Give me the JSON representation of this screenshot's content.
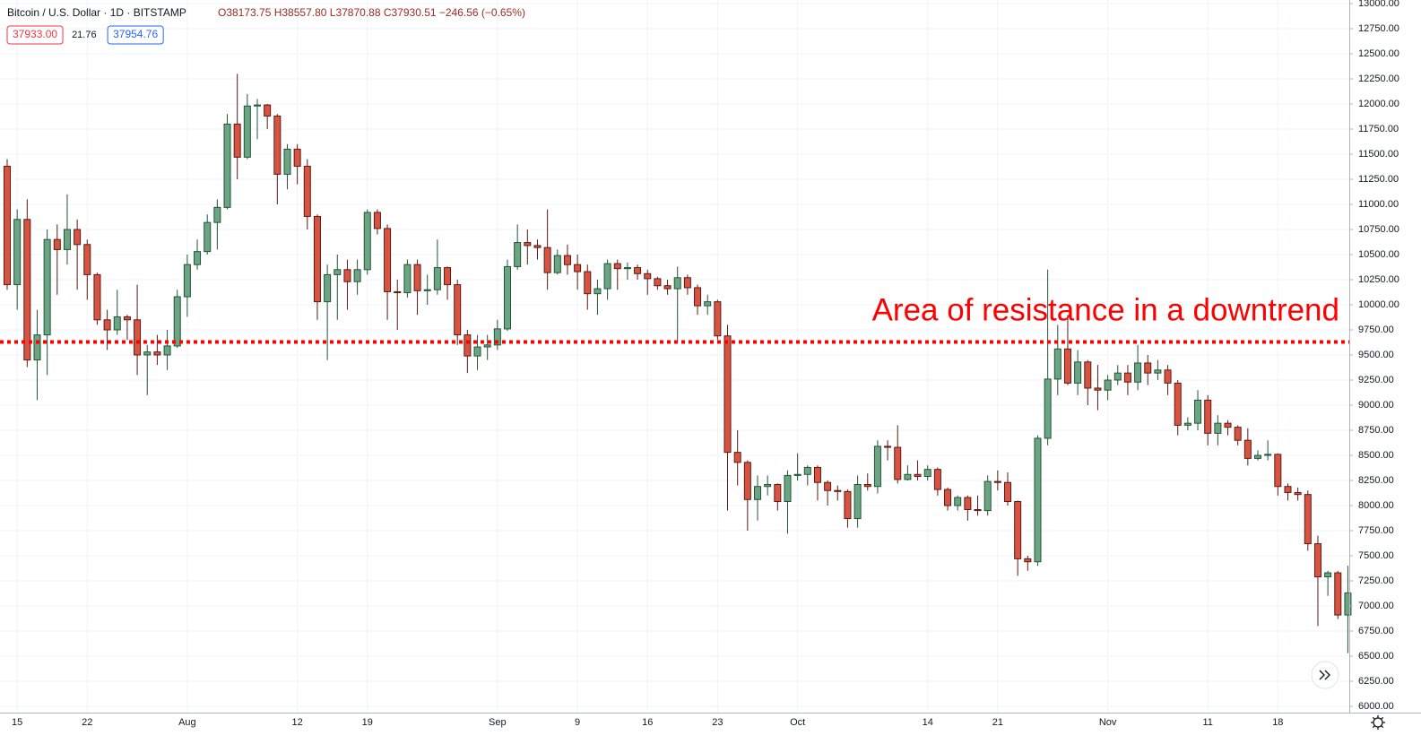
{
  "chart_data": {
    "type": "candlestick",
    "title": "Bitcoin / U.S. Dollar · 1D · BITSTAMP",
    "legend_values": "O38173.75 H38557.80 L37870.88 C37930.51 −246.56 (−0.65%)",
    "price_boxes": [
      {
        "label": "37933.00",
        "color": "#f23645"
      },
      {
        "label": "21.76",
        "color": null
      },
      {
        "label": "37954.76",
        "color": "#2962ff"
      }
    ],
    "annotation": {
      "text": "Area of resistance in a downtrend",
      "value": 9630,
      "color": "#ff0000"
    },
    "up_color": "#6ba583",
    "down_color": "#d75442",
    "up_border": "#225437",
    "down_border": "#5b1a13",
    "grid": true,
    "ylim": [
      6000,
      13000
    ],
    "yticks": [
      {
        "value": 6000,
        "label": "6000.00"
      },
      {
        "value": 6250,
        "label": "6250.00"
      },
      {
        "value": 6500,
        "label": "6500.00"
      },
      {
        "value": 6750,
        "label": "6750.00"
      },
      {
        "value": 7000,
        "label": "7000.00"
      },
      {
        "value": 7250,
        "label": "7250.00"
      },
      {
        "value": 7500,
        "label": "7500.00"
      },
      {
        "value": 7750,
        "label": "7750.00"
      },
      {
        "value": 8000,
        "label": "8000.00"
      },
      {
        "value": 8250,
        "label": "8250.00"
      },
      {
        "value": 8500,
        "label": "8500.00"
      },
      {
        "value": 8750,
        "label": "8750.00"
      },
      {
        "value": 9000,
        "label": "9000.00"
      },
      {
        "value": 9250,
        "label": "9250.00"
      },
      {
        "value": 9500,
        "label": "9500.00"
      },
      {
        "value": 9750,
        "label": "9750.00"
      },
      {
        "value": 10000,
        "label": "10000.00"
      },
      {
        "value": 10250,
        "label": "10250.00"
      },
      {
        "value": 10500,
        "label": "10500.00"
      },
      {
        "value": 10750,
        "label": "10750.00"
      },
      {
        "value": 11000,
        "label": "11000.00"
      },
      {
        "value": 11250,
        "label": "11250.00"
      },
      {
        "value": 11500,
        "label": "11500.00"
      },
      {
        "value": 11750,
        "label": "11750.00"
      },
      {
        "value": 12000,
        "label": "12000.00"
      },
      {
        "value": 12250,
        "label": "12250.00"
      },
      {
        "value": 12500,
        "label": "12500.00"
      },
      {
        "value": 12750,
        "label": "12750.00"
      },
      {
        "value": 13000,
        "label": "13000.00"
      }
    ],
    "categories": [
      null,
      "15",
      null,
      null,
      null,
      null,
      null,
      null,
      "22",
      null,
      null,
      null,
      null,
      null,
      null,
      null,
      null,
      null,
      "Aug",
      null,
      null,
      null,
      null,
      null,
      null,
      null,
      null,
      null,
      null,
      "12",
      null,
      null,
      null,
      null,
      null,
      null,
      "19",
      null,
      null,
      null,
      null,
      null,
      null,
      null,
      null,
      null,
      null,
      null,
      null,
      "Sep",
      null,
      null,
      null,
      null,
      null,
      null,
      null,
      "9",
      null,
      null,
      null,
      null,
      null,
      null,
      "16",
      null,
      null,
      null,
      null,
      null,
      null,
      "23",
      null,
      null,
      null,
      null,
      null,
      null,
      null,
      "Oct",
      null,
      null,
      null,
      null,
      null,
      null,
      null,
      null,
      null,
      null,
      null,
      null,
      "14",
      null,
      null,
      null,
      null,
      null,
      null,
      "21",
      null,
      null,
      null,
      null,
      null,
      null,
      null,
      null,
      null,
      null,
      "Nov",
      null,
      null,
      null,
      null,
      null,
      null,
      null,
      null,
      null,
      "11",
      null,
      null,
      null,
      null,
      null,
      null,
      "18",
      null,
      null,
      null,
      null,
      null,
      null,
      null
    ],
    "open": [
      11380,
      10200,
      10850,
      9450,
      9700,
      10650,
      10550,
      10750,
      10600,
      10300,
      9850,
      9750,
      9880,
      9850,
      9500,
      9530,
      9500,
      9590,
      10080,
      10400,
      10530,
      10820,
      10970,
      11800,
      11470,
      11980,
      11990,
      11880,
      11300,
      11550,
      11380,
      10880,
      10030,
      10300,
      10350,
      10230,
      10350,
      10920,
      10760,
      10130,
      10120,
      10400,
      10140,
      10150,
      10370,
      10200,
      9700,
      9490,
      9580,
      9600,
      9760,
      10380,
      10620,
      10590,
      10570,
      10320,
      10490,
      10400,
      10330,
      10110,
      10160,
      10410,
      10360,
      10370,
      10310,
      10260,
      10190,
      10160,
      10270,
      10170,
      9990,
      10030,
      9690,
      8530,
      8430,
      8060,
      8190,
      8210,
      8040,
      8300,
      8310,
      8380,
      8230,
      8150,
      8140,
      7870,
      8210,
      8190,
      8590,
      8580,
      8260,
      8310,
      8290,
      8360,
      8160,
      8000,
      8080,
      7960,
      7950,
      8240,
      8230,
      8040,
      7470,
      7440,
      8670,
      9260,
      9560,
      9220,
      9430,
      9170,
      9150,
      9250,
      9320,
      9230,
      9420,
      9320,
      9350,
      9220,
      8800,
      8820,
      9050,
      8720,
      8820,
      8780,
      8650,
      8470,
      8500,
      8510,
      8190,
      8130,
      8110,
      7620,
      7290,
      7330,
      6910
    ],
    "high": [
      11450,
      10950,
      11050,
      9950,
      10750,
      10800,
      11100,
      10850,
      10650,
      10320,
      9950,
      10150,
      9900,
      10200,
      9600,
      9700,
      9750,
      10150,
      10500,
      10650,
      10900,
      11050,
      11900,
      12300,
      12100,
      12050,
      12000,
      11900,
      11600,
      11600,
      11450,
      10900,
      10400,
      10500,
      10450,
      10450,
      10950,
      10950,
      10800,
      10250,
      10450,
      10450,
      10300,
      10650,
      10380,
      10250,
      9750,
      9700,
      9700,
      9850,
      10450,
      10800,
      10750,
      10650,
      10950,
      10550,
      10600,
      10500,
      10400,
      10250,
      10450,
      10450,
      10420,
      10400,
      10350,
      10280,
      10250,
      10380,
      10300,
      10200,
      10100,
      10050,
      9800,
      8750,
      8450,
      8300,
      8300,
      8220,
      8350,
      8520,
      8400,
      8400,
      8250,
      8200,
      8160,
      8300,
      8320,
      8650,
      8650,
      8800,
      8400,
      8450,
      8400,
      8380,
      8180,
      8100,
      8100,
      8100,
      8300,
      8350,
      8330,
      8050,
      7500,
      8700,
      10350,
      9800,
      9900,
      9550,
      9450,
      9400,
      9300,
      9400,
      9400,
      9600,
      9500,
      9450,
      9400,
      9250,
      8880,
      9150,
      9100,
      8900,
      8850,
      8800,
      8770,
      8550,
      8650,
      8520,
      8220,
      8180,
      8150,
      7700,
      7350,
      7350,
      7400
    ],
    "low": [
      10150,
      9950,
      9380,
      9050,
      9300,
      10100,
      10400,
      10150,
      10050,
      9800,
      9550,
      9700,
      9650,
      9300,
      9100,
      9400,
      9350,
      9570,
      9880,
      10350,
      10500,
      10550,
      10950,
      11250,
      11450,
      11650,
      11750,
      11000,
      11150,
      11200,
      10750,
      9850,
      9450,
      9850,
      9950,
      10100,
      10300,
      10700,
      9850,
      9750,
      10070,
      9900,
      10000,
      10100,
      10050,
      9600,
      9320,
      9350,
      9450,
      9550,
      9740,
      10350,
      10400,
      10450,
      10150,
      10300,
      10300,
      10150,
      9950,
      9900,
      10050,
      10150,
      10250,
      10250,
      10100,
      10150,
      10100,
      9620,
      10100,
      9900,
      9900,
      9650,
      7950,
      8200,
      7750,
      7850,
      8100,
      7950,
      7720,
      8250,
      8200,
      8050,
      8000,
      8050,
      7780,
      7780,
      8150,
      8120,
      8450,
      8220,
      8250,
      8250,
      8250,
      8100,
      7950,
      7950,
      7850,
      7900,
      7900,
      8150,
      8000,
      7300,
      7350,
      7400,
      8600,
      9100,
      9200,
      9100,
      9000,
      8950,
      9050,
      9200,
      9100,
      9150,
      9200,
      9250,
      9100,
      8700,
      8750,
      8750,
      8600,
      8600,
      8700,
      8600,
      8400,
      8450,
      8450,
      8100,
      8050,
      8050,
      7550,
      6800,
      7100,
      6870,
      6530
    ],
    "close": [
      10200,
      10850,
      9450,
      9700,
      10650,
      10550,
      10750,
      10600,
      10300,
      9850,
      9750,
      9880,
      9850,
      9500,
      9530,
      9500,
      9590,
      10080,
      10400,
      10530,
      10820,
      10970,
      11800,
      11470,
      11980,
      11990,
      11880,
      11300,
      11550,
      11380,
      10880,
      10030,
      10300,
      10350,
      10230,
      10350,
      10920,
      10760,
      10130,
      10120,
      10400,
      10140,
      10150,
      10370,
      10200,
      9700,
      9490,
      9580,
      9600,
      9760,
      10380,
      10620,
      10590,
      10570,
      10320,
      10490,
      10400,
      10330,
      10110,
      10160,
      10410,
      10360,
      10370,
      10310,
      10260,
      10190,
      10160,
      10270,
      10170,
      9990,
      10030,
      9690,
      8530,
      8430,
      8060,
      8190,
      8210,
      8040,
      8300,
      8310,
      8380,
      8230,
      8150,
      8140,
      7870,
      8210,
      8190,
      8590,
      8580,
      8260,
      8310,
      8290,
      8360,
      8160,
      8000,
      8080,
      7960,
      7950,
      8240,
      8230,
      8040,
      7470,
      7440,
      8670,
      9260,
      9560,
      9220,
      9430,
      9170,
      9150,
      9250,
      9320,
      9230,
      9420,
      9320,
      9350,
      9220,
      8800,
      8820,
      9050,
      8720,
      8820,
      8780,
      8650,
      8470,
      8500,
      8510,
      8190,
      8130,
      8110,
      7620,
      7290,
      7330,
      6910,
      7130
    ]
  }
}
